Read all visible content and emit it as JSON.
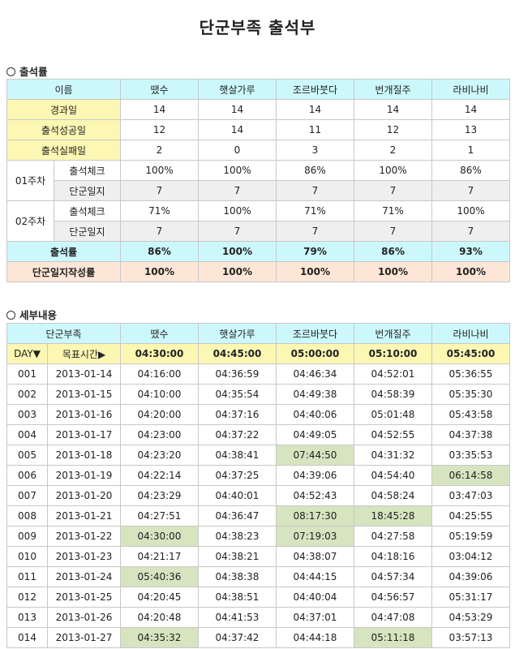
{
  "title": "단군부족 출석부",
  "summary": {
    "section_label": "출석률",
    "header": {
      "label": "이름",
      "names": [
        "땠수",
        "햇살가루",
        "조르바붓다",
        "번개질주",
        "라비나비"
      ]
    },
    "rows": [
      {
        "label": "경과일",
        "values": [
          "14",
          "14",
          "14",
          "14",
          "14"
        ]
      },
      {
        "label": "출석성공일",
        "values": [
          "12",
          "14",
          "11",
          "12",
          "13"
        ]
      },
      {
        "label": "출석실패일",
        "values": [
          "2",
          "0",
          "3",
          "2",
          "1"
        ]
      }
    ],
    "weeks": [
      {
        "label": "01주차",
        "check": {
          "label": "출석체크",
          "values": [
            "100%",
            "100%",
            "86%",
            "100%",
            "86%"
          ]
        },
        "diary": {
          "label": "단군일지",
          "values": [
            "7",
            "7",
            "7",
            "7",
            "7"
          ]
        }
      },
      {
        "label": "02주차",
        "check": {
          "label": "출석체크",
          "values": [
            "71%",
            "100%",
            "71%",
            "71%",
            "100%"
          ]
        },
        "diary": {
          "label": "단군일지",
          "values": [
            "7",
            "7",
            "7",
            "7",
            "7"
          ]
        }
      }
    ],
    "rate": {
      "label": "출석률",
      "values": [
        "86%",
        "100%",
        "79%",
        "86%",
        "93%"
      ]
    },
    "diary_rate": {
      "label": "단군일지작성률",
      "values": [
        "100%",
        "100%",
        "100%",
        "100%",
        "100%"
      ]
    }
  },
  "details": {
    "section_label": "세부내용",
    "header": {
      "label": "단군부족",
      "names": [
        "땠수",
        "햇살가루",
        "조르바붓다",
        "번개질주",
        "라비나비"
      ]
    },
    "target_row": {
      "day_label": "DAY▼",
      "target_label": "목표시간▶",
      "values": [
        "04:30:00",
        "04:45:00",
        "05:00:00",
        "05:10:00",
        "05:45:00"
      ]
    },
    "highlight_color": "#d6e4bf",
    "rows": [
      {
        "day": "001",
        "date": "2013-01-14",
        "times": [
          "04:16:00",
          "04:36:59",
          "04:46:34",
          "04:52:01",
          "05:36:55"
        ],
        "hl": [
          0,
          0,
          0,
          0,
          0
        ]
      },
      {
        "day": "002",
        "date": "2013-01-15",
        "times": [
          "04:10:00",
          "04:35:54",
          "04:49:38",
          "04:58:39",
          "05:35:30"
        ],
        "hl": [
          0,
          0,
          0,
          0,
          0
        ]
      },
      {
        "day": "003",
        "date": "2013-01-16",
        "times": [
          "04:20:00",
          "04:37:16",
          "04:40:06",
          "05:01:48",
          "05:43:58"
        ],
        "hl": [
          0,
          0,
          0,
          0,
          0
        ]
      },
      {
        "day": "004",
        "date": "2013-01-17",
        "times": [
          "04:23:00",
          "04:37:22",
          "04:49:05",
          "04:52:55",
          "04:37:38"
        ],
        "hl": [
          0,
          0,
          0,
          0,
          0
        ]
      },
      {
        "day": "005",
        "date": "2013-01-18",
        "times": [
          "04:23:20",
          "04:38:41",
          "07:44:50",
          "04:31:32",
          "03:35:53"
        ],
        "hl": [
          0,
          0,
          1,
          0,
          0
        ]
      },
      {
        "day": "006",
        "date": "2013-01-19",
        "times": [
          "04:22:14",
          "04:37:25",
          "04:39:06",
          "04:54:40",
          "06:14:58"
        ],
        "hl": [
          0,
          0,
          0,
          0,
          1
        ]
      },
      {
        "day": "007",
        "date": "2013-01-20",
        "times": [
          "04:23:29",
          "04:40:01",
          "04:52:43",
          "04:58:24",
          "03:47:03"
        ],
        "hl": [
          0,
          0,
          0,
          0,
          0
        ]
      },
      {
        "day": "008",
        "date": "2013-01-21",
        "times": [
          "04:27:51",
          "04:36:47",
          "08:17:30",
          "18:45:28",
          "04:25:55"
        ],
        "hl": [
          0,
          0,
          1,
          1,
          0
        ]
      },
      {
        "day": "009",
        "date": "2013-01-22",
        "times": [
          "04:30:00",
          "04:38:23",
          "07:19:03",
          "04:27:58",
          "05:19:59"
        ],
        "hl": [
          1,
          0,
          1,
          0,
          0
        ]
      },
      {
        "day": "010",
        "date": "2013-01-23",
        "times": [
          "04:21:17",
          "04:38:21",
          "04:38:07",
          "04:18:16",
          "03:04:12"
        ],
        "hl": [
          0,
          0,
          0,
          0,
          0
        ]
      },
      {
        "day": "011",
        "date": "2013-01-24",
        "times": [
          "05:40:36",
          "04:38:38",
          "04:44:15",
          "04:57:34",
          "04:39:06"
        ],
        "hl": [
          1,
          0,
          0,
          0,
          0
        ]
      },
      {
        "day": "012",
        "date": "2013-01-25",
        "times": [
          "04:20:45",
          "04:38:51",
          "04:40:04",
          "04:56:57",
          "05:31:17"
        ],
        "hl": [
          0,
          0,
          0,
          0,
          0
        ]
      },
      {
        "day": "013",
        "date": "2013-01-26",
        "times": [
          "04:20:48",
          "04:41:53",
          "04:37:01",
          "04:47:08",
          "04:53:29"
        ],
        "hl": [
          0,
          0,
          0,
          0,
          0
        ]
      },
      {
        "day": "014",
        "date": "2013-01-27",
        "times": [
          "04:35:32",
          "04:37:42",
          "04:44:18",
          "05:11:18",
          "03:57:13"
        ],
        "hl": [
          1,
          0,
          0,
          1,
          0
        ]
      }
    ]
  }
}
